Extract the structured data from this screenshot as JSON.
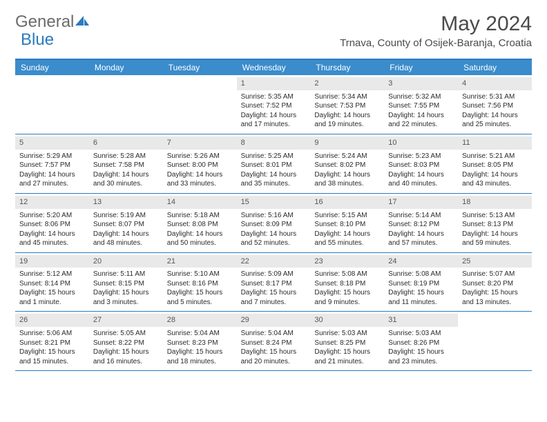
{
  "logo": {
    "part1": "General",
    "part2": "Blue"
  },
  "title": "May 2024",
  "location": "Trnava, County of Osijek-Baranja, Croatia",
  "day_header_bg": "#3a8ccc",
  "accent_color": "#2a7ac0",
  "daynum_bg": "#e9e9e9",
  "days_of_week": [
    "Sunday",
    "Monday",
    "Tuesday",
    "Wednesday",
    "Thursday",
    "Friday",
    "Saturday"
  ],
  "weeks": [
    [
      null,
      null,
      null,
      {
        "n": "1",
        "sr": "5:35 AM",
        "ss": "7:52 PM",
        "dl": "14 hours and 17 minutes."
      },
      {
        "n": "2",
        "sr": "5:34 AM",
        "ss": "7:53 PM",
        "dl": "14 hours and 19 minutes."
      },
      {
        "n": "3",
        "sr": "5:32 AM",
        "ss": "7:55 PM",
        "dl": "14 hours and 22 minutes."
      },
      {
        "n": "4",
        "sr": "5:31 AM",
        "ss": "7:56 PM",
        "dl": "14 hours and 25 minutes."
      }
    ],
    [
      {
        "n": "5",
        "sr": "5:29 AM",
        "ss": "7:57 PM",
        "dl": "14 hours and 27 minutes."
      },
      {
        "n": "6",
        "sr": "5:28 AM",
        "ss": "7:58 PM",
        "dl": "14 hours and 30 minutes."
      },
      {
        "n": "7",
        "sr": "5:26 AM",
        "ss": "8:00 PM",
        "dl": "14 hours and 33 minutes."
      },
      {
        "n": "8",
        "sr": "5:25 AM",
        "ss": "8:01 PM",
        "dl": "14 hours and 35 minutes."
      },
      {
        "n": "9",
        "sr": "5:24 AM",
        "ss": "8:02 PM",
        "dl": "14 hours and 38 minutes."
      },
      {
        "n": "10",
        "sr": "5:23 AM",
        "ss": "8:03 PM",
        "dl": "14 hours and 40 minutes."
      },
      {
        "n": "11",
        "sr": "5:21 AM",
        "ss": "8:05 PM",
        "dl": "14 hours and 43 minutes."
      }
    ],
    [
      {
        "n": "12",
        "sr": "5:20 AM",
        "ss": "8:06 PM",
        "dl": "14 hours and 45 minutes."
      },
      {
        "n": "13",
        "sr": "5:19 AM",
        "ss": "8:07 PM",
        "dl": "14 hours and 48 minutes."
      },
      {
        "n": "14",
        "sr": "5:18 AM",
        "ss": "8:08 PM",
        "dl": "14 hours and 50 minutes."
      },
      {
        "n": "15",
        "sr": "5:16 AM",
        "ss": "8:09 PM",
        "dl": "14 hours and 52 minutes."
      },
      {
        "n": "16",
        "sr": "5:15 AM",
        "ss": "8:10 PM",
        "dl": "14 hours and 55 minutes."
      },
      {
        "n": "17",
        "sr": "5:14 AM",
        "ss": "8:12 PM",
        "dl": "14 hours and 57 minutes."
      },
      {
        "n": "18",
        "sr": "5:13 AM",
        "ss": "8:13 PM",
        "dl": "14 hours and 59 minutes."
      }
    ],
    [
      {
        "n": "19",
        "sr": "5:12 AM",
        "ss": "8:14 PM",
        "dl": "15 hours and 1 minute."
      },
      {
        "n": "20",
        "sr": "5:11 AM",
        "ss": "8:15 PM",
        "dl": "15 hours and 3 minutes."
      },
      {
        "n": "21",
        "sr": "5:10 AM",
        "ss": "8:16 PM",
        "dl": "15 hours and 5 minutes."
      },
      {
        "n": "22",
        "sr": "5:09 AM",
        "ss": "8:17 PM",
        "dl": "15 hours and 7 minutes."
      },
      {
        "n": "23",
        "sr": "5:08 AM",
        "ss": "8:18 PM",
        "dl": "15 hours and 9 minutes."
      },
      {
        "n": "24",
        "sr": "5:08 AM",
        "ss": "8:19 PM",
        "dl": "15 hours and 11 minutes."
      },
      {
        "n": "25",
        "sr": "5:07 AM",
        "ss": "8:20 PM",
        "dl": "15 hours and 13 minutes."
      }
    ],
    [
      {
        "n": "26",
        "sr": "5:06 AM",
        "ss": "8:21 PM",
        "dl": "15 hours and 15 minutes."
      },
      {
        "n": "27",
        "sr": "5:05 AM",
        "ss": "8:22 PM",
        "dl": "15 hours and 16 minutes."
      },
      {
        "n": "28",
        "sr": "5:04 AM",
        "ss": "8:23 PM",
        "dl": "15 hours and 18 minutes."
      },
      {
        "n": "29",
        "sr": "5:04 AM",
        "ss": "8:24 PM",
        "dl": "15 hours and 20 minutes."
      },
      {
        "n": "30",
        "sr": "5:03 AM",
        "ss": "8:25 PM",
        "dl": "15 hours and 21 minutes."
      },
      {
        "n": "31",
        "sr": "5:03 AM",
        "ss": "8:26 PM",
        "dl": "15 hours and 23 minutes."
      },
      null
    ]
  ],
  "labels": {
    "sunrise": "Sunrise:",
    "sunset": "Sunset:",
    "daylight": "Daylight:"
  }
}
